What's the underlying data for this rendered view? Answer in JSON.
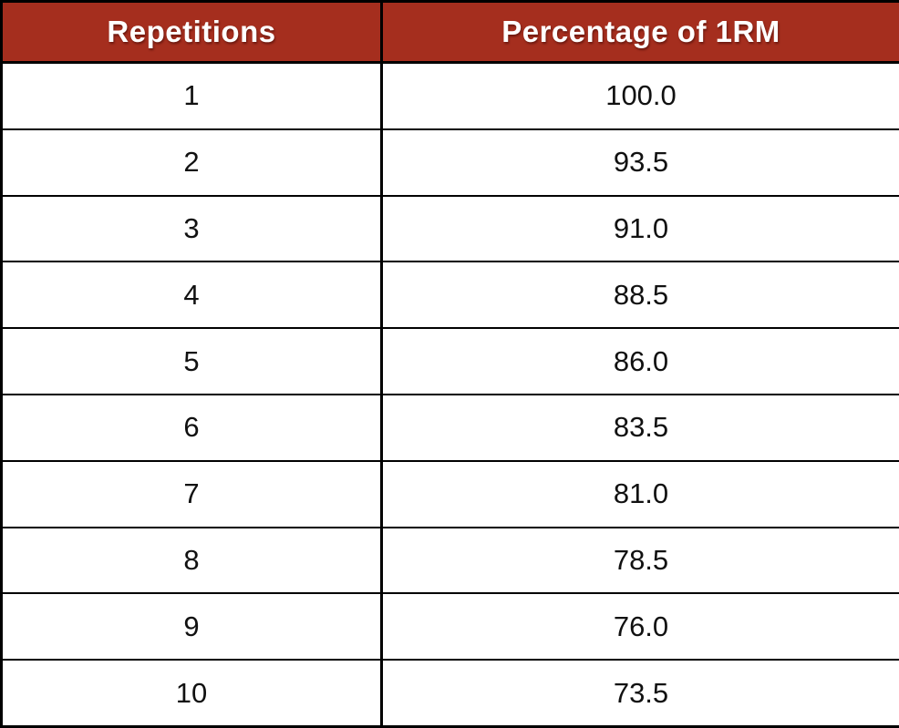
{
  "table": {
    "headers": {
      "repetitions": "Repetitions",
      "percentage": "Percentage of 1RM"
    },
    "rows": [
      {
        "repetitions": "1",
        "percentage": "100.0"
      },
      {
        "repetitions": "2",
        "percentage": "93.5"
      },
      {
        "repetitions": "3",
        "percentage": "91.0"
      },
      {
        "repetitions": "4",
        "percentage": "88.5"
      },
      {
        "repetitions": "5",
        "percentage": "86.0"
      },
      {
        "repetitions": "6",
        "percentage": "83.5"
      },
      {
        "repetitions": "7",
        "percentage": "81.0"
      },
      {
        "repetitions": "8",
        "percentage": "78.5"
      },
      {
        "repetitions": "9",
        "percentage": "76.0"
      },
      {
        "repetitions": "10",
        "percentage": "73.5"
      }
    ]
  },
  "colors": {
    "header_background": "#a52e1e",
    "header_text": "#ffffff",
    "border": "#000000",
    "cell_background": "#ffffff",
    "cell_text": "#111111"
  },
  "chart_data": {
    "type": "table",
    "title": "",
    "columns": [
      "Repetitions",
      "Percentage of 1RM"
    ],
    "categories": [
      1,
      2,
      3,
      4,
      5,
      6,
      7,
      8,
      9,
      10
    ],
    "values": [
      100.0,
      93.5,
      91.0,
      88.5,
      86.0,
      83.5,
      81.0,
      78.5,
      76.0,
      73.5
    ],
    "xlabel": "Repetitions",
    "ylabel": "Percentage of 1RM"
  }
}
